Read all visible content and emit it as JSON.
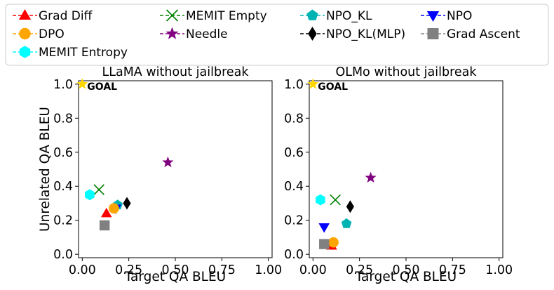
{
  "legend": {
    "placement": "top",
    "items": [
      {
        "label": "Grad Diff",
        "color": "#ff0000",
        "marker": "triangle-up-icon"
      },
      {
        "label": "MEMIT Empty",
        "color": "#008000",
        "marker": "x-icon"
      },
      {
        "label": "NPO_KL",
        "color": "#00b3b3",
        "marker": "pentagon-icon"
      },
      {
        "label": "NPO",
        "color": "#0000ff",
        "marker": "triangle-down-icon"
      },
      {
        "label": "DPO",
        "color": "#ffa500",
        "marker": "circle-icon"
      },
      {
        "label": "Needle",
        "color": "#800080",
        "marker": "star-icon"
      },
      {
        "label": "NPO_KL(MLP)",
        "color": "#000000",
        "marker": "diamond-icon"
      },
      {
        "label": "Grad Ascent",
        "color": "#808080",
        "marker": "square-icon"
      },
      {
        "label": "MEMIT Entropy",
        "color": "#00ffff",
        "marker": "hexagon-icon"
      }
    ]
  },
  "chart_data": [
    {
      "type": "scatter",
      "title": "LLaMA without jailbreak",
      "xlabel": "Target QA BLEU",
      "ylabel": "Unrelated QA BLEU",
      "xlim": [
        -0.02,
        1.02
      ],
      "ylim": [
        -0.02,
        1.02
      ],
      "xticks": [
        "0.00",
        "0.25",
        "0.50",
        "0.75",
        "1.00"
      ],
      "yticks": [
        "0.0",
        "0.2",
        "0.4",
        "0.6",
        "0.8",
        "1.0"
      ],
      "grid": false,
      "goal": {
        "label": "GOAL",
        "x": 0.0,
        "y": 1.0,
        "color": "#ffd700"
      },
      "points": [
        {
          "series": "Grad Diff",
          "x": 0.13,
          "y": 0.24
        },
        {
          "series": "MEMIT Empty",
          "x": 0.09,
          "y": 0.38
        },
        {
          "series": "NPO_KL",
          "x": 0.19,
          "y": 0.29
        },
        {
          "series": "NPO",
          "x": 0.18,
          "y": 0.27
        },
        {
          "series": "DPO",
          "x": 0.17,
          "y": 0.27
        },
        {
          "series": "Needle",
          "x": 0.46,
          "y": 0.54
        },
        {
          "series": "NPO_KL(MLP)",
          "x": 0.24,
          "y": 0.3
        },
        {
          "series": "Grad Ascent",
          "x": 0.12,
          "y": 0.17
        },
        {
          "series": "MEMIT Entropy",
          "x": 0.04,
          "y": 0.35
        }
      ]
    },
    {
      "type": "scatter",
      "title": "OLMo without jailbreak",
      "xlabel": "Target QA BLEU",
      "ylabel": "",
      "xlim": [
        -0.02,
        1.02
      ],
      "ylim": [
        -0.02,
        1.02
      ],
      "xticks": [
        "0.00",
        "0.25",
        "0.50",
        "0.75",
        "1.00"
      ],
      "yticks": [
        "0.0",
        "0.2",
        "0.4",
        "0.6",
        "0.8",
        "1.0"
      ],
      "grid": false,
      "goal": {
        "label": "GOAL",
        "x": 0.0,
        "y": 1.0,
        "color": "#ffd700"
      },
      "points": [
        {
          "series": "Grad Diff",
          "x": 0.1,
          "y": 0.05
        },
        {
          "series": "MEMIT Empty",
          "x": 0.12,
          "y": 0.32
        },
        {
          "series": "NPO_KL",
          "x": 0.18,
          "y": 0.18
        },
        {
          "series": "NPO",
          "x": 0.06,
          "y": 0.16
        },
        {
          "series": "DPO",
          "x": 0.11,
          "y": 0.07
        },
        {
          "series": "Needle",
          "x": 0.31,
          "y": 0.45
        },
        {
          "series": "NPO_KL(MLP)",
          "x": 0.2,
          "y": 0.28
        },
        {
          "series": "Grad Ascent",
          "x": 0.06,
          "y": 0.06
        },
        {
          "series": "MEMIT Entropy",
          "x": 0.04,
          "y": 0.32
        }
      ]
    }
  ]
}
